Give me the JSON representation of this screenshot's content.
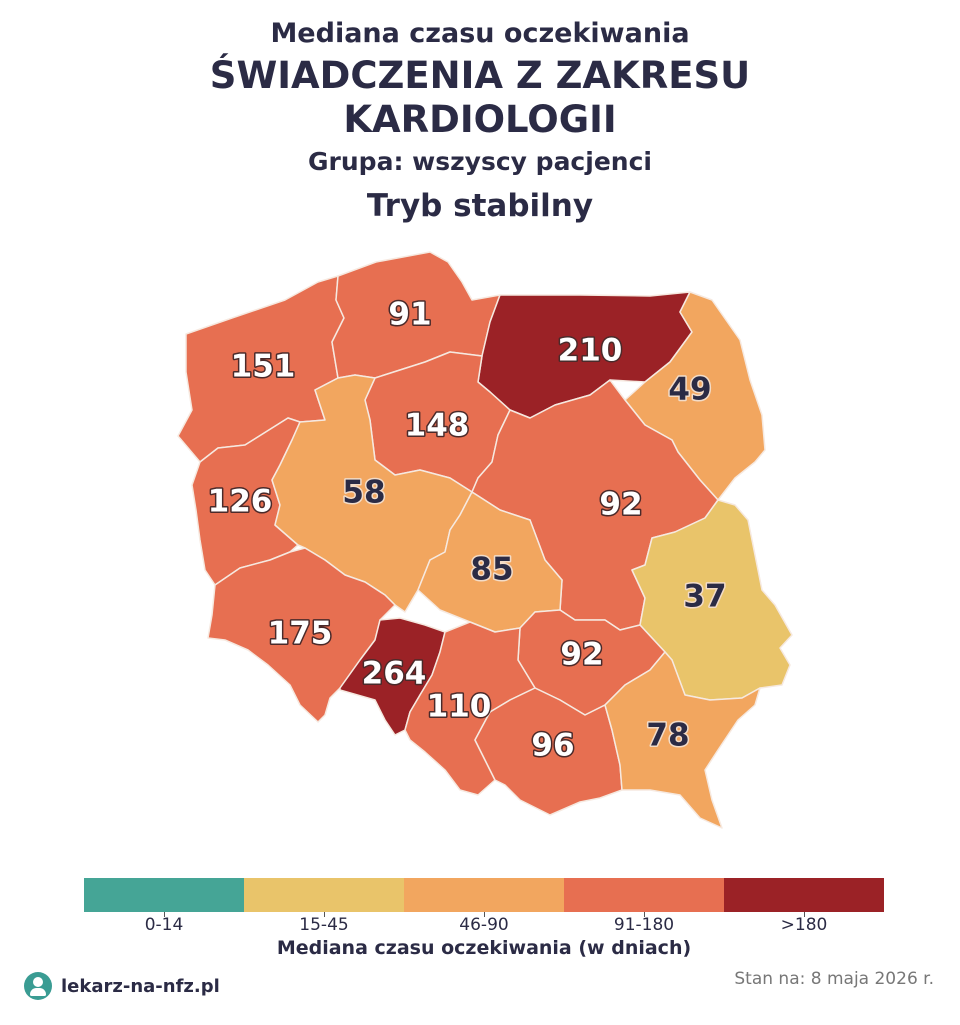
{
  "header": {
    "title_line1": "Mediana czasu oczekiwania",
    "title_line2": "ŚWIADCZENIA Z ZAKRESU",
    "title_line3": "KARDIOLOGII",
    "group": "Grupa: wszyscy pacjenci",
    "mode": "Tryb stabilny"
  },
  "colors": {
    "bin_0_14": "#45a596",
    "bin_15_45": "#e9c46a",
    "bin_46_90": "#f2a65f",
    "bin_91_180": "#e76f51",
    "bin_gt_180": "#9b2226"
  },
  "map": {
    "regions": [
      {
        "id": "zachodniopomorskie",
        "value": "151",
        "bin": "bin_91_180"
      },
      {
        "id": "pomorskie",
        "value": "91",
        "bin": "bin_91_180"
      },
      {
        "id": "warminsko-mazurskie",
        "value": "210",
        "bin": "bin_gt_180"
      },
      {
        "id": "podlaskie",
        "value": "49",
        "bin": "bin_46_90"
      },
      {
        "id": "kujawsko-pomorskie",
        "value": "148",
        "bin": "bin_91_180"
      },
      {
        "id": "lubuskie",
        "value": "126",
        "bin": "bin_91_180"
      },
      {
        "id": "wielkopolskie",
        "value": "58",
        "bin": "bin_46_90"
      },
      {
        "id": "mazowieckie",
        "value": "92",
        "bin": "bin_91_180"
      },
      {
        "id": "lodzkie",
        "value": "85",
        "bin": "bin_46_90"
      },
      {
        "id": "lubelskie",
        "value": "37",
        "bin": "bin_15_45"
      },
      {
        "id": "dolnoslaskie",
        "value": "175",
        "bin": "bin_91_180"
      },
      {
        "id": "opolskie",
        "value": "264",
        "bin": "bin_gt_180"
      },
      {
        "id": "swietokrzyskie",
        "value": "92",
        "bin": "bin_91_180"
      },
      {
        "id": "slaskie",
        "value": "110",
        "bin": "bin_91_180"
      },
      {
        "id": "malopolskie",
        "value": "96",
        "bin": "bin_91_180"
      },
      {
        "id": "podkarpackie",
        "value": "78",
        "bin": "bin_46_90"
      }
    ]
  },
  "legend": {
    "bins": [
      {
        "label": "0-14",
        "bin": "bin_0_14"
      },
      {
        "label": "15-45",
        "bin": "bin_15_45"
      },
      {
        "label": "46-90",
        "bin": "bin_46_90"
      },
      {
        "label": "91-180",
        "bin": "bin_91_180"
      },
      {
        "label": ">180",
        "bin": "bin_gt_180"
      }
    ],
    "title": "Mediana czasu oczekiwania (w dniach)"
  },
  "footer": {
    "logo_text": "lekarz-na-nfz.pl",
    "logo_icon": "doctor-icon",
    "date": "Stan na: 8 maja 2026 r."
  }
}
